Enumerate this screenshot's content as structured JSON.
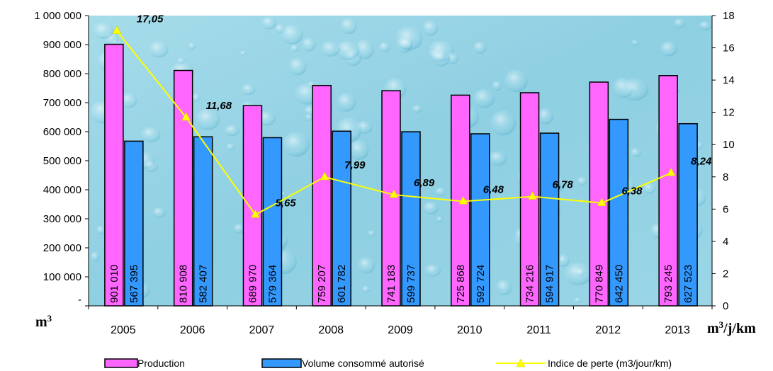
{
  "chart_data": {
    "type": "bar",
    "categories": [
      "2005",
      "2006",
      "2007",
      "2008",
      "2009",
      "2010",
      "2011",
      "2012",
      "2013"
    ],
    "series": [
      {
        "name": "Production",
        "type": "bar",
        "axis": "left",
        "color": "#ff66ff",
        "values": [
          901010,
          810908,
          689970,
          759207,
          741183,
          725868,
          734216,
          770849,
          793245
        ],
        "labels": [
          "901 010",
          "810 908",
          "689 970",
          "759 207",
          "741 183",
          "725 868",
          "734 216",
          "770 849",
          "793 245"
        ]
      },
      {
        "name": "Volume consommé autorisé",
        "type": "bar",
        "axis": "left",
        "color": "#3399ff",
        "values": [
          567395,
          582407,
          579364,
          601782,
          599737,
          592724,
          594917,
          642450,
          627523
        ],
        "labels": [
          "567 395",
          "582 407",
          "579 364",
          "601 782",
          "599 737",
          "592 724",
          "594 917",
          "642 450",
          "627 523"
        ]
      },
      {
        "name": "Indice de perte  (m3/jour/km)",
        "type": "line",
        "axis": "right",
        "color": "#ffff00",
        "values": [
          17.05,
          11.68,
          5.65,
          7.99,
          6.89,
          6.48,
          6.78,
          6.38,
          8.24
        ],
        "labels": [
          "17,05",
          "11,68",
          "5,65",
          "7,99",
          "6,89",
          "6,48",
          "6,78",
          "6,38",
          "8,24"
        ]
      }
    ],
    "y_left": {
      "range": [
        0,
        1000000
      ],
      "ticks": [
        "-",
        "100 000",
        "200 000",
        "300 000",
        "400 000",
        "500 000",
        "600 000",
        "700 000",
        "800 000",
        "900 000",
        "1 000 000"
      ],
      "unit_main": "m",
      "unit_sup": "3"
    },
    "y_right": {
      "range": [
        0,
        18
      ],
      "ticks": [
        "0",
        "2",
        "4",
        "6",
        "8",
        "10",
        "12",
        "14",
        "16",
        "18"
      ],
      "unit_main": "m",
      "unit_sup": "3",
      "unit_tail": "/j/km"
    },
    "plot_background": "#8fd3e6",
    "legend_position": "bottom",
    "grid": false
  }
}
